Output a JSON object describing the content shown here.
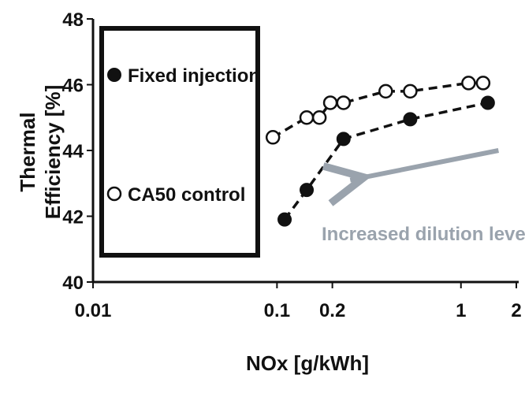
{
  "chart_data": {
    "type": "scatter",
    "xlabel": "NOx [g/kWh]",
    "ylabel_line1": "Thermal",
    "ylabel_line2": "Efficiency [%]",
    "xscale": "log",
    "xlim": [
      0.01,
      2
    ],
    "ylim": [
      40,
      48
    ],
    "x_ticks": [
      0.01,
      0.1,
      0.2,
      1,
      2
    ],
    "x_tick_labels": [
      "0.01",
      "0.1",
      "0.2",
      "1",
      "2"
    ],
    "y_ticks": [
      40,
      42,
      44,
      46,
      48
    ],
    "y_tick_labels": [
      "40",
      "42",
      "44",
      "46",
      "48"
    ],
    "grid": false,
    "legend_position": "left",
    "series": [
      {
        "name": "Fixed injection",
        "marker": "filled-circle",
        "line": "dashed",
        "color": "#111111",
        "points": [
          {
            "x": 0.11,
            "y": 41.9
          },
          {
            "x": 0.145,
            "y": 42.8
          },
          {
            "x": 0.23,
            "y": 44.35
          },
          {
            "x": 0.53,
            "y": 44.95
          },
          {
            "x": 1.4,
            "y": 45.45
          }
        ]
      },
      {
        "name": "CA50 control",
        "marker": "open-circle",
        "line": "dashed",
        "color": "#111111",
        "points": [
          {
            "x": 0.095,
            "y": 44.4
          },
          {
            "x": 0.145,
            "y": 45.0
          },
          {
            "x": 0.17,
            "y": 45.0
          },
          {
            "x": 0.195,
            "y": 45.45
          },
          {
            "x": 0.23,
            "y": 45.45
          },
          {
            "x": 0.39,
            "y": 45.8
          },
          {
            "x": 0.53,
            "y": 45.8
          },
          {
            "x": 1.1,
            "y": 46.05
          },
          {
            "x": 1.32,
            "y": 46.05
          }
        ]
      }
    ],
    "annotation": {
      "text": "Increased dilution level",
      "color": "#9aa3ad",
      "arrow_from": {
        "x": 1.6,
        "y": 44.0
      },
      "arrow_to": {
        "x": 0.25,
        "y": 43.1
      }
    }
  }
}
